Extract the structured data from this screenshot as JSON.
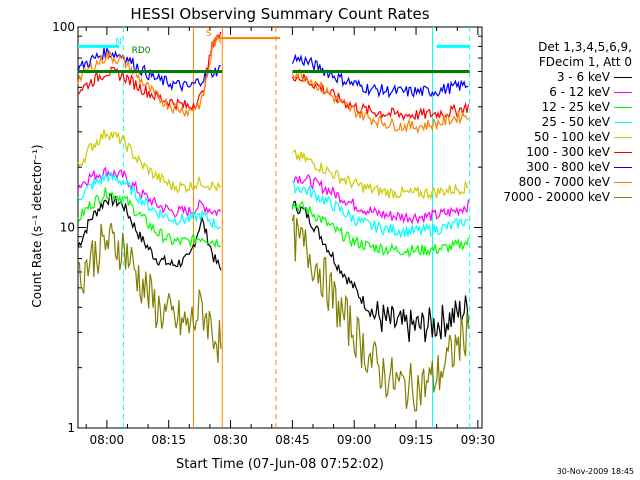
{
  "chart_data": {
    "type": "line",
    "title": "HESSI Observing Summary Count Rates",
    "xlabel": "Start Time (07-Jun-08 07:52:02)",
    "ylabel": "Count Rate (s⁻¹ detector⁻¹)",
    "yscale": "log",
    "ylim": [
      1,
      100
    ],
    "xlim": [
      "07:53",
      "09:31"
    ],
    "x_ticks": [
      "08:00",
      "08:15",
      "08:30",
      "08:45",
      "09:00",
      "09:15",
      "09:30"
    ],
    "y_ticks": [
      "1",
      "10",
      "100"
    ],
    "grid": false,
    "legend_position": "top-right",
    "legend_header": [
      "Det 1,3,4,5,6,9,",
      "FDecim 1, Att 0"
    ],
    "annotations": [
      {
        "text": "RD0",
        "x": "08:06",
        "y": 74,
        "color": "#008000"
      },
      {
        "text": "N",
        "x": "08:02",
        "y": 82,
        "color": "#00ffff"
      },
      {
        "text": "S",
        "x": "08:24",
        "y": 90,
        "color": "#ff8000"
      }
    ],
    "vertical_markers": [
      {
        "x": "08:04",
        "color": "#00ffff",
        "style": "dashed"
      },
      {
        "x": "08:21",
        "color": "#ff8000",
        "style": "solid"
      },
      {
        "x": "08:28",
        "color": "#ff8000",
        "style": "solid"
      },
      {
        "x": "08:41",
        "color": "#ff8000",
        "style": "dashed"
      },
      {
        "x": "09:19",
        "color": "#00ffff",
        "style": "solid"
      },
      {
        "x": "09:28",
        "color": "#00ffff",
        "style": "dashed"
      }
    ],
    "segments": [
      [
        "07:53",
        "08:28"
      ],
      [
        "08:45",
        "09:28"
      ]
    ],
    "x_points": [
      "07:53",
      "07:56",
      "08:00",
      "08:04",
      "08:08",
      "08:12",
      "08:16",
      "08:20",
      "08:23",
      "08:26",
      "08:28",
      "08:45",
      "08:48",
      "08:52",
      "08:56",
      "09:00",
      "09:04",
      "09:08",
      "09:12",
      "09:16",
      "09:20",
      "09:24",
      "09:28"
    ],
    "series": [
      {
        "name": "3 - 6 keV",
        "color": "#000000",
        "values": [
          8,
          11,
          14,
          13,
          9,
          7,
          6.5,
          7,
          11,
          7,
          6,
          13,
          12,
          9,
          6.5,
          5,
          3.8,
          3.4,
          3.2,
          3.2,
          3.3,
          3.6,
          4
        ]
      },
      {
        "name": "6 - 12 keV",
        "color": "#ff00ff",
        "values": [
          16,
          18,
          19,
          18,
          15,
          13,
          12,
          12,
          13,
          12,
          12,
          18,
          17.5,
          16,
          14.5,
          13,
          12,
          11.5,
          11.3,
          11.3,
          11.5,
          12,
          13
        ]
      },
      {
        "name": "12 - 25 keV",
        "color": "#00ff00",
        "values": [
          11,
          13,
          15,
          14,
          11.5,
          9.5,
          8.5,
          8.5,
          9,
          8.5,
          8.5,
          13,
          12.5,
          11,
          9.5,
          8.5,
          8,
          7.8,
          7.7,
          7.7,
          7.8,
          8,
          8.5
        ]
      },
      {
        "name": "25 - 50 keV",
        "color": "#00ffff",
        "values": [
          14,
          16,
          18,
          17,
          14,
          12,
          11,
          11,
          11.5,
          10.5,
          10,
          16,
          15.5,
          14,
          12.5,
          11,
          10.2,
          9.8,
          9.6,
          9.6,
          9.8,
          10.2,
          11
        ]
      },
      {
        "name": "50 - 100 keV",
        "color": "#cccc00",
        "values": [
          20,
          25,
          30,
          27,
          21,
          18,
          16,
          16,
          17,
          16,
          15.5,
          23,
          22,
          20,
          18,
          16.5,
          15.5,
          15,
          14.8,
          14.8,
          15,
          15.5,
          16
        ]
      },
      {
        "name": "100 - 300 keV",
        "color": "#ff0000",
        "values": [
          48,
          53,
          60,
          57,
          50,
          45,
          42,
          40,
          45,
          88,
          90,
          58,
          55,
          50,
          44,
          40,
          38,
          37,
          36.5,
          36.5,
          37,
          38,
          40
        ]
      },
      {
        "name": "300 - 800 keV",
        "color": "#0000ff",
        "values": [
          62,
          68,
          75,
          72,
          62,
          55,
          52,
          50,
          55,
          60,
          62,
          70,
          68,
          62,
          56,
          52,
          49,
          48,
          47.5,
          47.5,
          48,
          50,
          52
        ]
      },
      {
        "name": "800 - 7000 keV",
        "color": "#ff8000",
        "values": [
          55,
          62,
          72,
          68,
          55,
          45,
          40,
          38,
          42,
          85,
          86,
          60,
          57,
          50,
          43,
          38,
          35,
          33,
          32,
          32,
          33,
          35,
          37
        ]
      },
      {
        "name": "7000 - 20000 keV",
        "color": "#808000",
        "values": [
          5.5,
          7,
          8.5,
          8,
          5.5,
          4,
          3.5,
          3.2,
          4,
          3,
          2.5,
          9,
          8,
          6,
          4,
          3,
          2.2,
          1.8,
          1.6,
          1.6,
          1.8,
          2.4,
          3.2
        ]
      }
    ]
  },
  "footer_stamp": "30-Nov-2009 18:45"
}
